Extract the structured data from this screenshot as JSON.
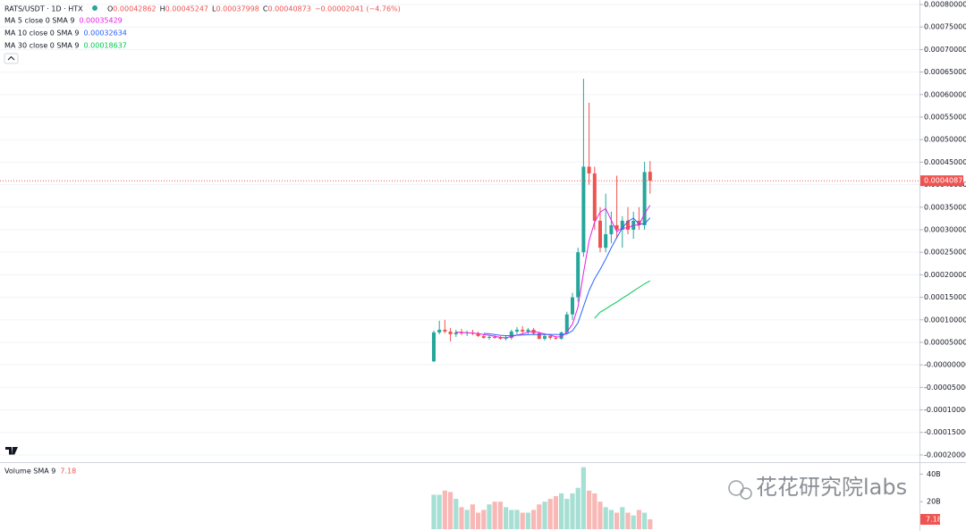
{
  "chart_data": {
    "type": "candlestick",
    "title": "RATS/USDT · 1D · HTX",
    "ohlc_labels": [
      "O",
      "H",
      "L",
      "C"
    ],
    "change_text": "−0.00002041 (−4.76%)",
    "up_color": "#26a69a",
    "down_color": "#ef5350",
    "grid": true,
    "ylim": [
      -0.000216,
      0.00081
    ],
    "yticks": [
      {
        "value": 0.0008,
        "label": "0.00080000"
      },
      {
        "value": 0.00075,
        "label": "0.00075000"
      },
      {
        "value": 0.0007,
        "label": "0.00070000"
      },
      {
        "value": 0.00065,
        "label": "0.00065000"
      },
      {
        "value": 0.0006,
        "label": "0.00060000"
      },
      {
        "value": 0.00055,
        "label": "0.00055000"
      },
      {
        "value": 0.0005,
        "label": "0.00050000"
      },
      {
        "value": 0.00045,
        "label": "0.00045000"
      },
      {
        "value": 0.0004,
        "label": "0.00040000"
      },
      {
        "value": 0.00035,
        "label": "0.00035000"
      },
      {
        "value": 0.0003,
        "label": "0.00030000"
      },
      {
        "value": 0.00025,
        "label": "0.00025000"
      },
      {
        "value": 0.0002,
        "label": "0.00020000"
      },
      {
        "value": 0.00015,
        "label": "0.00015000"
      },
      {
        "value": 0.0001,
        "label": "0.00010000"
      },
      {
        "value": 5e-05,
        "label": "0.00005000"
      },
      {
        "value": 0,
        "label": "-0.00000000"
      },
      {
        "value": -5e-05,
        "label": "-0.00005000"
      },
      {
        "value": -0.0001,
        "label": "-0.00010000"
      },
      {
        "value": -0.00015,
        "label": "-0.00015000"
      },
      {
        "value": -0.0002,
        "label": "-0.00020000"
      }
    ],
    "open": [
      8e-06,
      7.2e-05,
      7.8e-05,
      7.4e-05,
      6.8e-05,
      7.2e-05,
      7e-05,
      7.2e-05,
      7e-05,
      6.4e-05,
      6e-05,
      6.2e-05,
      6e-05,
      5.8e-05,
      6e-05,
      7.4e-05,
      7.8e-05,
      7.4e-05,
      7.8e-05,
      7e-05,
      5.8e-05,
      6.4e-05,
      6e-05,
      5.8e-05,
      7.2e-05,
      0.000112,
      0.00015,
      0.00025,
      0.00044,
      0.000425,
      0.00032,
      0.00026,
      0.00029,
      0.00031,
      0.0003,
      0.00032,
      0.0003,
      0.00032,
      0.00031,
      0.00042862
    ],
    "high": [
      7.6e-05,
      9.8e-05,
      0.0001,
      8.2e-05,
      7.8e-05,
      8e-05,
      7.6e-05,
      7.8e-05,
      7.4e-05,
      6.8e-05,
      6.6e-05,
      6.6e-05,
      6.4e-05,
      6.4e-05,
      7.8e-05,
      8.4e-05,
      8.6e-05,
      8.2e-05,
      8.2e-05,
      7.4e-05,
      6.8e-05,
      6.8e-05,
      6.4e-05,
      7.4e-05,
      0.000118,
      0.00016,
      0.00026,
      0.000635,
      0.000582,
      0.00044,
      0.00035,
      0.00038,
      0.00034,
      0.00042,
      0.00033,
      0.00035,
      0.00034,
      0.00035,
      0.000451,
      0.00045247
    ],
    "low": [
      6e-06,
      6.8e-05,
      7e-05,
      5.2e-05,
      6.2e-05,
      6.6e-05,
      6.4e-05,
      6.6e-05,
      6.2e-05,
      5.8e-05,
      5.6e-05,
      5.8e-05,
      5.6e-05,
      5.4e-05,
      5.6e-05,
      6.8e-05,
      7e-05,
      6.8e-05,
      6.6e-05,
      5.6e-05,
      5.4e-05,
      5.6e-05,
      5.6e-05,
      5.6e-05,
      6.8e-05,
      0.0001,
      0.00014,
      0.00024,
      0.0004,
      0.0003,
      0.00025,
      0.00025,
      0.00027,
      0.00028,
      0.00026,
      0.00029,
      0.00028,
      0.0003,
      0.0003,
      0.00037998
    ],
    "close": [
      7.2e-05,
      7.8e-05,
      7.4e-05,
      6.8e-05,
      7.2e-05,
      7e-05,
      7.2e-05,
      7e-05,
      6.4e-05,
      6e-05,
      6.2e-05,
      6e-05,
      5.8e-05,
      6e-05,
      7.4e-05,
      7.8e-05,
      7.4e-05,
      7.8e-05,
      7e-05,
      5.8e-05,
      6.4e-05,
      6e-05,
      5.8e-05,
      7.2e-05,
      0.000112,
      0.00015,
      0.00025,
      0.00044,
      0.000425,
      0.00032,
      0.00026,
      0.00029,
      0.00031,
      0.0003,
      0.00032,
      0.0003,
      0.00032,
      0.00031,
      0.000428,
      0.00040873
    ],
    "series": [
      {
        "name": "MA 5 close 0 SMA 9",
        "color": "#e91ee6",
        "values": [
          null,
          null,
          null,
          null,
          7.28e-05,
          7.24e-05,
          7.12e-05,
          7.04e-05,
          6.96e-05,
          6.72e-05,
          6.56e-05,
          6.32e-05,
          6.08e-05,
          6e-05,
          6.28e-05,
          6.6e-05,
          6.88e-05,
          7.28e-05,
          7.48e-05,
          7.16e-05,
          6.88e-05,
          6.6e-05,
          6.2e-05,
          6.24e-05,
          7.32e-05,
          9.04e-05,
          0.0001284,
          0.0002048,
          0.0002754,
          0.000317,
          0.000339,
          0.000347,
          0.000321,
          0.000296,
          0.000304,
          0.000304,
          0.00031,
          0.00031,
          0.0003356,
          0.00035429
        ]
      },
      {
        "name": "MA 10 close 0 SMA 9",
        "color": "#2962ff",
        "values": [
          null,
          null,
          null,
          null,
          null,
          null,
          null,
          null,
          null,
          7e-05,
          6.9e-05,
          6.72e-05,
          6.56e-05,
          6.48e-05,
          6.5e-05,
          6.58e-05,
          6.62e-05,
          6.7e-05,
          6.76e-05,
          6.74e-05,
          6.76e-05,
          6.76e-05,
          6.76e-05,
          6.68e-05,
          6.86e-05,
          7.58e-05,
          9.34e-05,
          0.0001296,
          0.0001651,
          0.0001913,
          0.0002119,
          0.0002349,
          0.0002601,
          0.0002829,
          0.0003037,
          0.0003187,
          0.0003257,
          0.0003127,
          0.000313,
          0.00032634
        ]
      },
      {
        "name": "MA 30 close 0 SMA 9",
        "color": "#00c853",
        "values": [
          null,
          null,
          null,
          null,
          null,
          null,
          null,
          null,
          null,
          null,
          null,
          null,
          null,
          null,
          null,
          null,
          null,
          null,
          null,
          null,
          null,
          null,
          null,
          null,
          null,
          null,
          null,
          null,
          null,
          0.0001033,
          0.000117,
          0.0001241,
          0.000132,
          0.0001397,
          0.000148,
          0.0001556,
          0.0001639,
          0.0001719,
          0.00018,
          0.00018637
        ]
      }
    ],
    "volume": {
      "title": "Volume SMA 9",
      "up_color": "#a6dfd3",
      "down_color": "#f8b8b6",
      "ylim": [
        0,
        48
      ],
      "yticks": [
        {
          "value": 40,
          "label": "40B"
        },
        {
          "value": 20,
          "label": "20B"
        }
      ],
      "values": [
        25,
        25,
        28,
        27,
        22,
        16,
        14,
        18,
        12,
        14,
        18,
        20,
        20,
        16,
        14,
        14,
        12,
        12,
        14,
        18,
        20,
        22,
        24,
        26,
        22,
        26,
        30,
        45,
        28,
        26,
        20,
        16,
        14,
        12,
        16,
        12,
        10,
        14,
        12,
        7.18
      ]
    },
    "watermark": "花花研究院labs"
  }
}
